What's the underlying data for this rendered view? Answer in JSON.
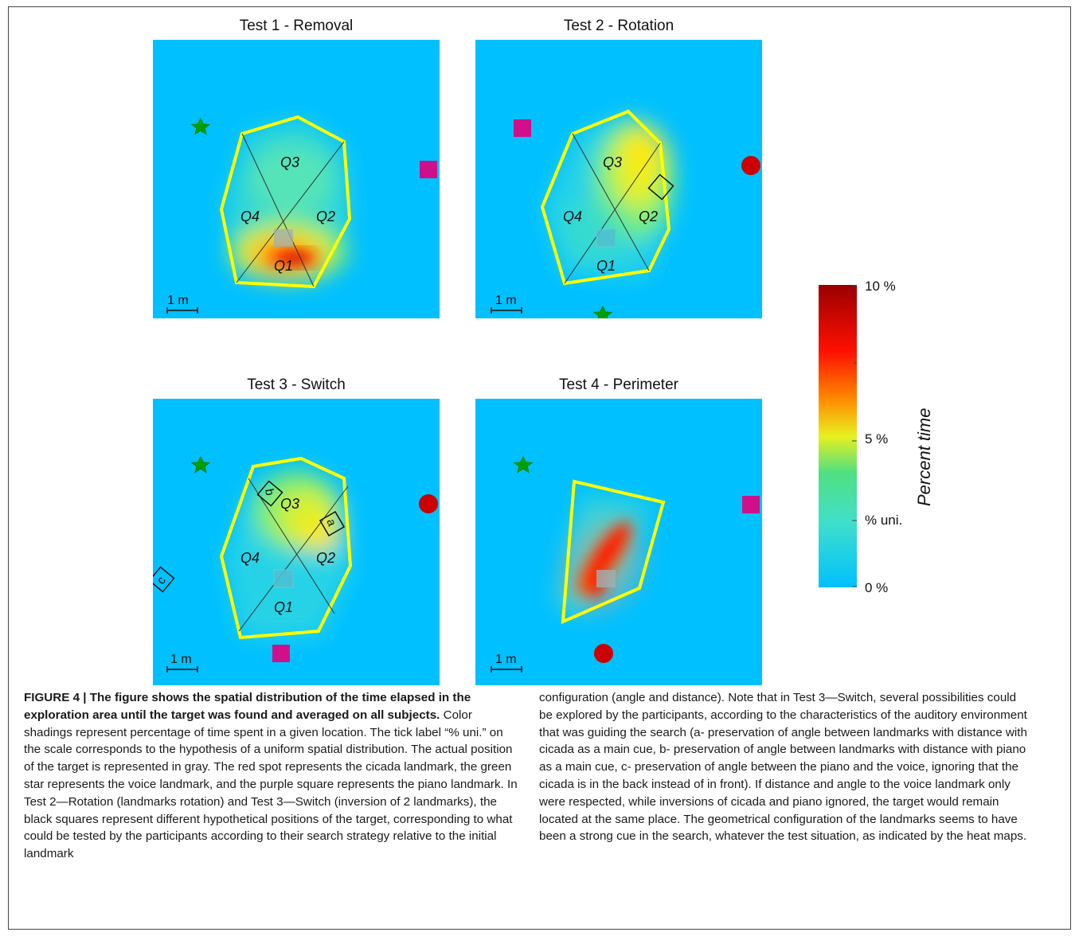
{
  "figure": {
    "panels": [
      {
        "id": "test1",
        "title": "Test 1 - Removal",
        "quadrants": [
          "Q1",
          "Q2",
          "Q3",
          "Q4"
        ],
        "scale_label": "1 m",
        "landmarks": {
          "voice": "green-star",
          "piano": "purple-square"
        },
        "hotspot": "Q1 (orange/red)"
      },
      {
        "id": "test2",
        "title": "Test 2 - Rotation",
        "quadrants": [
          "Q1",
          "Q2",
          "Q3",
          "Q4"
        ],
        "scale_label": "1 m",
        "landmarks": {
          "voice": "green-star",
          "piano": "purple-square",
          "cicada": "red-spot"
        },
        "hotspot": "Q3/Q2 (yellow)"
      },
      {
        "id": "test3",
        "title": "Test 3 - Switch",
        "quadrants": [
          "Q1",
          "Q2",
          "Q3",
          "Q4"
        ],
        "scale_label": "1 m",
        "hypothetical_labels": [
          "a",
          "b",
          "c"
        ],
        "landmarks": {
          "voice": "green-star",
          "piano": "purple-square",
          "cicada": "red-spot"
        },
        "hotspot": "Q3 (yellow)"
      },
      {
        "id": "test4",
        "title": "Test 4 - Perimeter",
        "scale_label": "1 m",
        "landmarks": {
          "voice": "green-star",
          "piano": "purple-square",
          "cicada": "red-spot"
        },
        "hotspot": "center (red)"
      }
    ],
    "colorbar": {
      "title": "Percent time",
      "ticks": [
        "10 %",
        "5 %",
        "% uni.",
        "0 %"
      ],
      "tick_values": [
        10,
        5,
        2.7,
        0
      ],
      "colors": [
        "#00c8ff",
        "#40e0c0",
        "#b0f040",
        "#ffe000",
        "#ff8000",
        "#ff0000",
        "#a00000"
      ]
    }
  },
  "caption": {
    "label": "FIGURE 4 | The figure shows the spatial distribution of the time elapsed in the exploration area until the target was found and averaged on all subjects.",
    "body_left": "Color shadings represent percentage of time spent in a given location. The tick label “% uni.” on the scale corresponds to the hypothesis of a uniform spatial distribution. The actual position of the target is represented in gray. The red spot represents the cicada landmark, the green star represents the voice landmark, and the purple square represents the piano landmark. In Test 2—Rotation (landmarks rotation) and Test 3—Switch (inversion of 2 landmarks), the black squares represent different hypothetical positions of the target, corresponding to what could be tested by the participants according to their search strategy relative to the initial landmark",
    "body_right": "configuration (angle and distance). Note that in Test 3—Switch, several possibilities could be explored by the participants, according to the characteristics of the auditory environment that was guiding the search (a- preservation of angle between landmarks with distance with cicada as a main cue, b- preservation of angle between landmarks with distance with piano as a main cue, c- preservation of angle between the piano and the voice, ignoring that the cicada is in the back instead of in front). If distance and angle to the voice landmark only were respected, while inversions of cicada and piano ignored, the target would remain located at the same place. The geometrical configuration of the landmarks seems to have been a strong cue in the search, whatever the test situation, as indicated by the heat maps."
  }
}
